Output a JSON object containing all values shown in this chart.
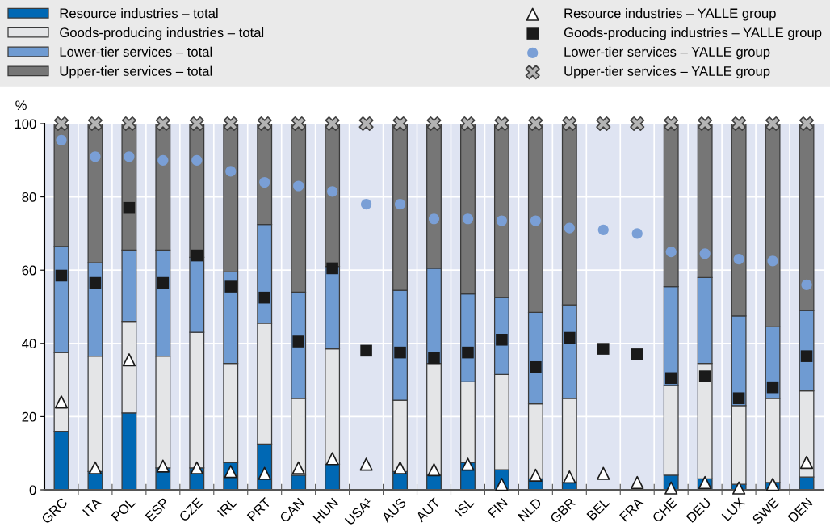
{
  "chart_data": {
    "type": "bar",
    "stacked": true,
    "ylabel": "%",
    "categories": [
      "GRC",
      "ITA",
      "POL",
      "ESP",
      "CZE",
      "IRL",
      "PRT",
      "CAN",
      "HUN",
      "USA¹",
      "AUS",
      "AUT",
      "ISL",
      "FIN",
      "NLD",
      "GBR",
      "BEL",
      "FRA",
      "CHE",
      "DEU",
      "LUX",
      "SWE",
      "DEN"
    ],
    "ylim": [
      0,
      100
    ],
    "yticks": [
      0,
      20,
      40,
      60,
      80,
      100
    ],
    "grid": true,
    "legend": "top",
    "series": [
      {
        "name": "Resource industries – total",
        "color": "#0068b4",
        "values": [
          16,
          5,
          21,
          6,
          6,
          7.5,
          12.5,
          4,
          7,
          null,
          5,
          4,
          7.5,
          5.5,
          3,
          2,
          null,
          null,
          4,
          3,
          1.5,
          2,
          3.5
        ]
      },
      {
        "name": "Goods-producing industries – total",
        "color": "#e4e5e7",
        "values": [
          21.5,
          31.5,
          25,
          30.5,
          37,
          27,
          33,
          21,
          31.5,
          null,
          19.5,
          30.5,
          22,
          26,
          20.5,
          23,
          null,
          null,
          24.5,
          31.5,
          21.5,
          23,
          23.5
        ]
      },
      {
        "name": "Lower-tier services – total",
        "color": "#6f9bd2",
        "values": [
          29,
          25.5,
          19.5,
          29,
          20.5,
          25,
          27,
          29,
          22.5,
          null,
          30,
          26,
          24,
          21,
          25,
          25.5,
          null,
          null,
          27,
          23.5,
          24.5,
          19.5,
          22
        ]
      },
      {
        "name": "Upper-tier services – total",
        "color": "#767676",
        "values": [
          33.5,
          38,
          34.5,
          34.5,
          36.5,
          40.5,
          27.5,
          46,
          39,
          null,
          45.5,
          39.5,
          46.5,
          47.5,
          51.5,
          49.5,
          null,
          null,
          44.5,
          42,
          52.5,
          55.5,
          51
        ]
      },
      {
        "name": "Resource industries – YALLE group",
        "type": "scatter",
        "marker": "triangle",
        "color": "#ffffff",
        "values": [
          24,
          6,
          35.5,
          6.5,
          6,
          5,
          4.5,
          6,
          8.5,
          7,
          6,
          5.5,
          7,
          1.5,
          4,
          3.5,
          4.5,
          2,
          0.5,
          2,
          0.5,
          1.5,
          7.5
        ]
      },
      {
        "name": "Goods-producing industries – YALLE group",
        "type": "scatter",
        "marker": "square",
        "color": "#1a1a1a",
        "values": [
          58.5,
          56.5,
          77,
          56.5,
          64,
          55.5,
          52.5,
          40.5,
          60.5,
          38,
          37.5,
          36,
          37.5,
          41,
          33.5,
          41.5,
          38.5,
          37,
          30.5,
          31,
          25,
          28,
          36.5
        ]
      },
      {
        "name": "Lower-tier services – YALLE group",
        "type": "scatter",
        "marker": "circle",
        "color": "#7a9fd6",
        "values": [
          95.5,
          91,
          91,
          90,
          90,
          87,
          84,
          83,
          81.5,
          78,
          78,
          74,
          74,
          73.5,
          73.5,
          71.5,
          71,
          70,
          65,
          64.5,
          63,
          62.5,
          56
        ]
      },
      {
        "name": "Upper-tier services – YALLE group",
        "type": "scatter",
        "marker": "cross",
        "color": "#b4b4b4",
        "values": [
          100,
          100,
          100,
          100,
          100,
          100,
          100,
          100,
          100,
          100,
          100,
          100,
          100,
          100,
          100,
          100,
          100,
          100,
          100,
          100,
          100,
          100,
          100
        ]
      }
    ]
  }
}
